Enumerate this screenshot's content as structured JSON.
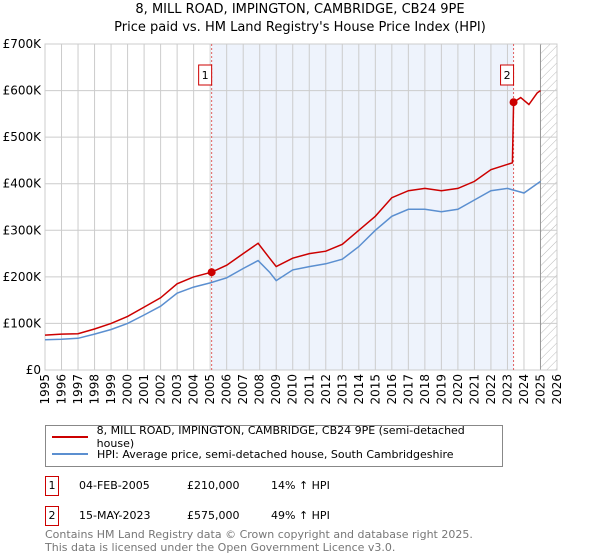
{
  "chart_data": {
    "type": "line",
    "title": "8, MILL ROAD, IMPINGTON, CAMBRIDGE, CB24 9PE",
    "subtitle": "Price paid vs. HM Land Registry's House Price Index (HPI)",
    "xlim": [
      1995,
      2026
    ],
    "ylim": [
      0,
      700000
    ],
    "x_ticks": [
      "1995",
      "1996",
      "1997",
      "1998",
      "1999",
      "2000",
      "2001",
      "2002",
      "2003",
      "2004",
      "2005",
      "2006",
      "2007",
      "2008",
      "2009",
      "2010",
      "2011",
      "2012",
      "2013",
      "2014",
      "2015",
      "2016",
      "2017",
      "2018",
      "2019",
      "2020",
      "2021",
      "2022",
      "2023",
      "2024",
      "2025",
      "2026"
    ],
    "y_ticks": [
      {
        "v": 0,
        "label": "£0"
      },
      {
        "v": 100000,
        "label": "£100K"
      },
      {
        "v": 200000,
        "label": "£200K"
      },
      {
        "v": 300000,
        "label": "£300K"
      },
      {
        "v": 400000,
        "label": "£400K"
      },
      {
        "v": 500000,
        "label": "£500K"
      },
      {
        "v": 600000,
        "label": "£600K"
      },
      {
        "v": 700000,
        "label": "£700K"
      }
    ],
    "grid": true,
    "shaded_range": [
      2005.09,
      2023.37
    ],
    "forecast_hatch_from": 2025.0,
    "series": [
      {
        "name": "8, MILL ROAD, IMPINGTON, CAMBRIDGE, CB24 9PE (semi-detached house)",
        "color": "#cc0000",
        "x": [
          1995,
          1996,
          1997,
          1998,
          1999,
          2000,
          2001,
          2002,
          2003,
          2004,
          2005.09,
          2006,
          2007,
          2007.9,
          2008.6,
          2009,
          2010,
          2011,
          2012,
          2013,
          2014,
          2015,
          2016,
          2017,
          2018,
          2019,
          2020,
          2021,
          2022,
          2023.3,
          2023.37,
          2023.8,
          2024.3,
          2024.8,
          2025.0
        ],
        "y": [
          75000,
          77000,
          78000,
          88000,
          100000,
          115000,
          135000,
          155000,
          185000,
          200000,
          210000,
          225000,
          250000,
          272000,
          240000,
          222000,
          240000,
          250000,
          255000,
          270000,
          300000,
          330000,
          370000,
          385000,
          390000,
          385000,
          390000,
          405000,
          430000,
          445000,
          575000,
          585000,
          570000,
          595000,
          600000
        ]
      },
      {
        "name": "HPI: Average price, semi-detached house, South Cambridgeshire",
        "color": "#5b8fd0",
        "x": [
          1995,
          1996,
          1997,
          1998,
          1999,
          2000,
          2001,
          2002,
          2003,
          2004,
          2005,
          2006,
          2007,
          2007.9,
          2008.6,
          2009,
          2010,
          2011,
          2012,
          2013,
          2014,
          2015,
          2016,
          2017,
          2018,
          2019,
          2020,
          2021,
          2022,
          2023,
          2024,
          2025
        ],
        "y": [
          65000,
          66000,
          68000,
          77000,
          87000,
          100000,
          118000,
          137000,
          165000,
          178000,
          187000,
          198000,
          218000,
          235000,
          210000,
          192000,
          215000,
          222000,
          228000,
          238000,
          265000,
          300000,
          330000,
          345000,
          345000,
          340000,
          345000,
          365000,
          385000,
          390000,
          380000,
          405000
        ]
      }
    ],
    "annotations": [
      {
        "id": "1",
        "x": 2005.09,
        "y": 210000
      },
      {
        "id": "2",
        "x": 2023.37,
        "y": 575000
      }
    ]
  },
  "legend": {
    "property": "8, MILL ROAD, IMPINGTON, CAMBRIDGE, CB24 9PE (semi-detached house)",
    "hpi": "HPI: Average price, semi-detached house, South Cambridgeshire"
  },
  "transactions": [
    {
      "id": "1",
      "date": "04-FEB-2005",
      "price": "£210,000",
      "hpi": "14% ↑ HPI"
    },
    {
      "id": "2",
      "date": "15-MAY-2023",
      "price": "£575,000",
      "hpi": "49% ↑ HPI"
    }
  ],
  "footer": {
    "line1": "Contains HM Land Registry data © Crown copyright and database right 2025.",
    "line2": "This data is licensed under the Open Government Licence v3.0."
  }
}
